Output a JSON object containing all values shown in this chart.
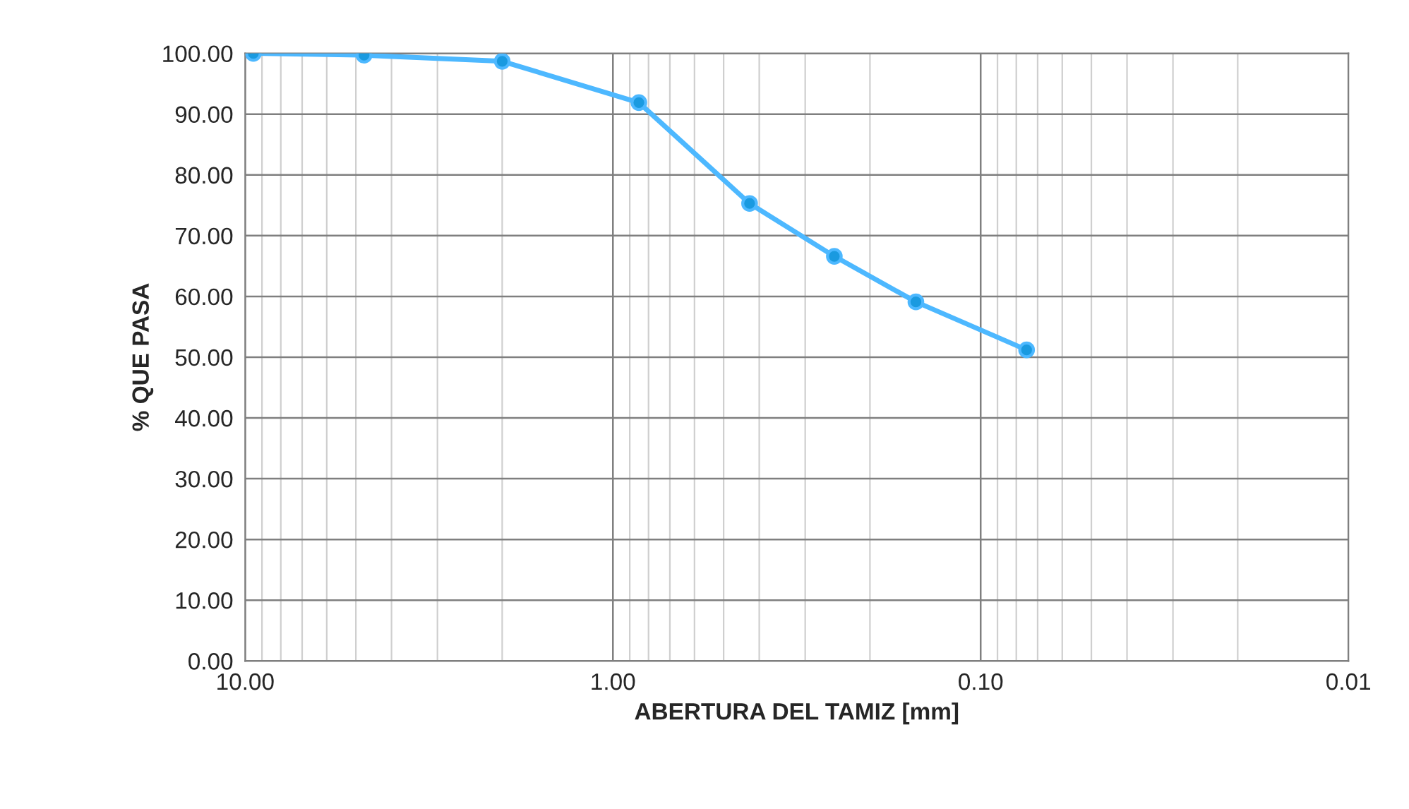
{
  "chart_data": {
    "type": "line",
    "xlabel": "ABERTURA DEL TAMIZ [mm]",
    "ylabel": "% QUE PASA",
    "x": [
      9.5,
      4.75,
      2.0,
      0.85,
      0.425,
      0.25,
      0.15,
      0.075
    ],
    "series": [
      {
        "color": "#4db8ff",
        "values": [
          100.0,
          99.7,
          98.7,
          91.9,
          75.3,
          66.6,
          59.1,
          51.2
        ]
      }
    ],
    "log": "x",
    "xlim": [
      10,
      0.01
    ],
    "ylim": [
      0,
      100
    ],
    "xticks": [
      {
        "value": 10,
        "label": "10.00"
      },
      {
        "value": 1,
        "label": "1.00"
      },
      {
        "value": 0.1,
        "label": "0.10"
      },
      {
        "value": 0.01,
        "label": "0.01"
      }
    ],
    "yticks": [
      {
        "value": 0,
        "label": "0.00"
      },
      {
        "value": 10,
        "label": "10.00"
      },
      {
        "value": 20,
        "label": "20.00"
      },
      {
        "value": 30,
        "label": "30.00"
      },
      {
        "value": 40,
        "label": "40.00"
      },
      {
        "value": 50,
        "label": "50.00"
      },
      {
        "value": 60,
        "label": "60.00"
      },
      {
        "value": 70,
        "label": "70.00"
      },
      {
        "value": 80,
        "label": "80.00"
      },
      {
        "value": 90,
        "label": "90.00"
      },
      {
        "value": 100,
        "label": "100.00"
      }
    ],
    "grid": true,
    "marker": "circle",
    "line_style": "solid"
  }
}
